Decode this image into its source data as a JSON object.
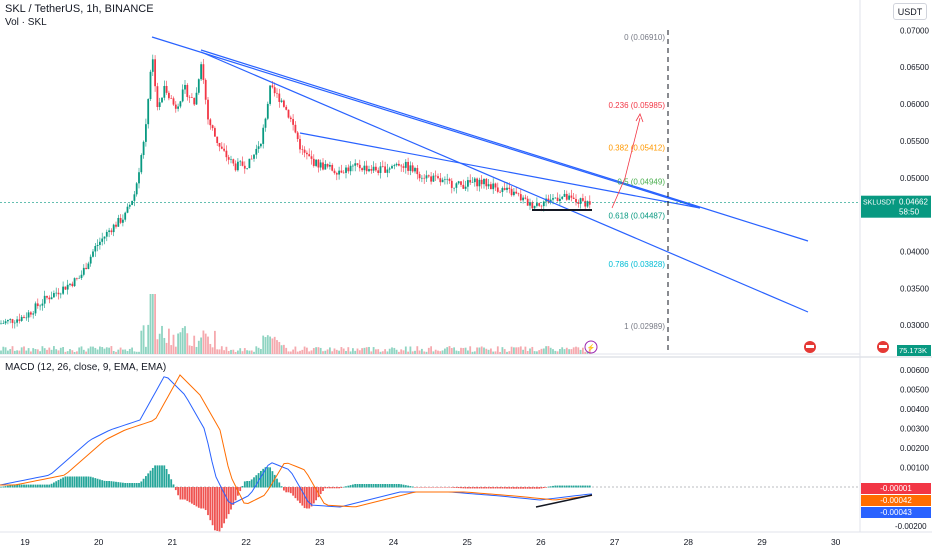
{
  "header": {
    "title": "SKL / TetherUS, 1h, BINANCE",
    "volume_label": "Vol · SKL",
    "currency_button": "USDT",
    "macd_label": "MACD (12, 26, close, 9, EMA, EMA)"
  },
  "price_axis": {
    "ticks": [
      "0.07000",
      "0.06500",
      "0.06000",
      "0.05500",
      "0.05000",
      "0.04500",
      "0.04000",
      "0.03500",
      "0.03000"
    ],
    "current_symbol": "SKLUSDT",
    "current_price": "0.04662",
    "countdown": "58:50",
    "volume_value": "75.173K"
  },
  "macd_axis": {
    "ticks": [
      "0.00600",
      "0.00500",
      "0.00400",
      "0.00300",
      "0.00200",
      "0.00100",
      "-0.00200"
    ],
    "badge_values": [
      "-0.00001",
      "-0.00042",
      "-0.00043"
    ]
  },
  "time_axis": {
    "ticks": [
      "19",
      "20",
      "21",
      "22",
      "23",
      "24",
      "25",
      "26",
      "27",
      "28",
      "29",
      "30"
    ]
  },
  "fib_levels": [
    {
      "label": "0 (0.06910)",
      "color": "#787b86"
    },
    {
      "label": "0.236 (0.05985)",
      "color": "#f23645"
    },
    {
      "label": "0.382 (0.05412)",
      "color": "#ff9800"
    },
    {
      "label": "0.5 (0.04949)",
      "color": "#4caf50"
    },
    {
      "label": "0.618 (0.04487)",
      "color": "#089981"
    },
    {
      "label": "0.786 (0.03828)",
      "color": "#00bcd4"
    },
    {
      "label": "1 (0.02989)",
      "color": "#787b86"
    }
  ],
  "colors": {
    "up": "#089981",
    "down": "#f23645",
    "trendline": "#2962ff",
    "macd_line": "#2962ff",
    "signal_line": "#ff6d00"
  }
}
